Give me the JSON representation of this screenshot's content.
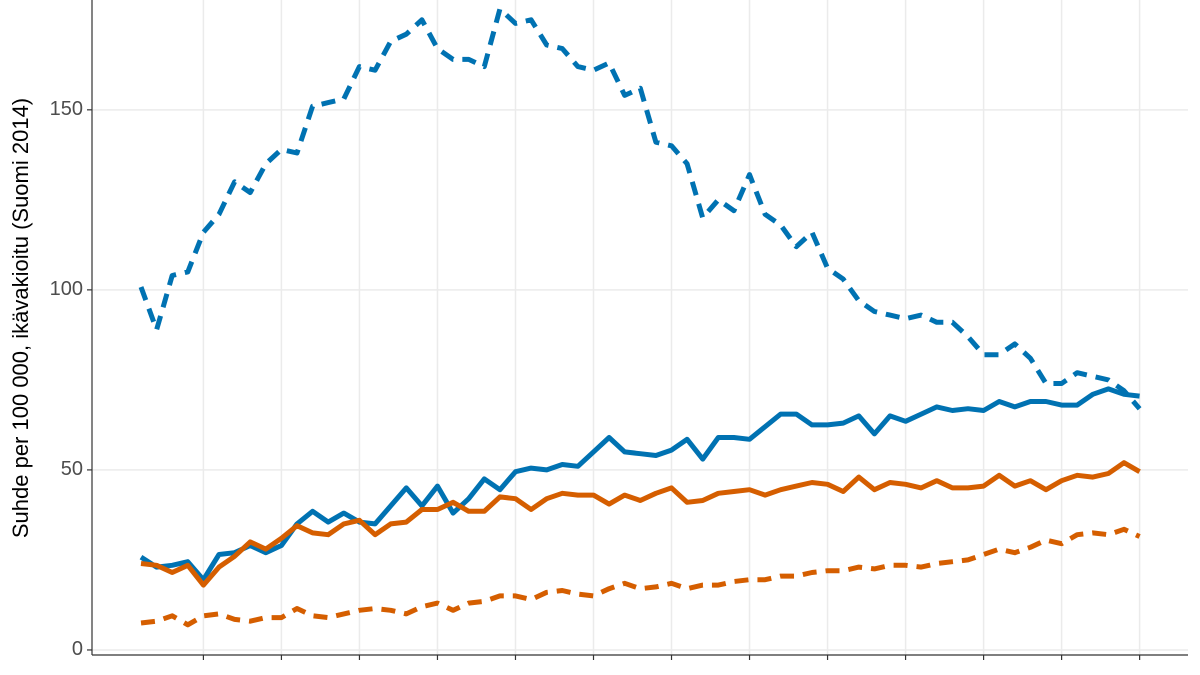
{
  "chart_data": {
    "type": "line",
    "y_label": "Suhde per 100 000, ikävakioitu (Suomi 2014)",
    "x": [
      0,
      1,
      2,
      3,
      4,
      5,
      6,
      7,
      8,
      9,
      10,
      11,
      12,
      13,
      14,
      15,
      16,
      17,
      18,
      19,
      20,
      21,
      22,
      23,
      24,
      25,
      26,
      27,
      28,
      29,
      30,
      31,
      32,
      33,
      34,
      35,
      36,
      37,
      38,
      39,
      40,
      41,
      42,
      43,
      44,
      45,
      46,
      47,
      48,
      49,
      50,
      51,
      52,
      53,
      54,
      55,
      56,
      57,
      58,
      59,
      60,
      61,
      62,
      63,
      64
    ],
    "xlim": [
      -3.14,
      67.1
    ],
    "xticks": [
      4,
      9,
      14,
      19,
      24,
      29,
      34,
      39,
      44,
      49,
      54,
      59,
      64
    ],
    "ylim": [
      -1.4,
      180.5
    ],
    "yticks": [
      0,
      50,
      100,
      150
    ],
    "grid": true,
    "series": [
      {
        "color": "#0072B2",
        "dashed": true,
        "values": [
          100.8,
          88.9,
          104,
          105,
          116,
          121,
          130,
          127,
          135,
          139,
          138,
          151,
          152,
          153,
          162,
          161,
          169,
          171,
          175,
          167,
          164,
          164,
          162,
          178,
          174,
          175,
          168,
          167,
          162,
          161,
          163,
          154,
          156,
          141,
          140,
          135,
          120,
          125,
          122,
          132,
          121,
          118,
          112,
          116,
          106,
          103,
          97,
          94,
          93,
          92,
          93,
          91,
          91,
          87,
          82,
          82,
          85,
          81,
          74,
          74,
          77,
          76,
          75,
          72,
          67
        ]
      },
      {
        "color": "#0072B2",
        "dashed": false,
        "values": [
          25.8,
          23,
          23.5,
          24.5,
          19.5,
          26.5,
          27,
          29,
          27,
          29,
          35,
          38.5,
          35.5,
          38,
          35.5,
          35,
          40,
          45,
          40,
          45.5,
          38,
          42,
          47.5,
          44.5,
          49.5,
          50.5,
          50,
          51.5,
          51,
          55,
          59,
          55,
          54.5,
          54,
          55.5,
          58.5,
          53,
          59,
          59,
          58.5,
          62,
          65.5,
          65.5,
          62.5,
          62.5,
          63,
          65,
          60,
          65,
          63.5,
          65.5,
          67.5,
          66.5,
          67,
          66.5,
          69,
          67.5,
          69,
          69,
          68,
          68,
          71,
          72.5,
          71,
          70.5
        ]
      },
      {
        "color": "#D55E00",
        "dashed": false,
        "values": [
          24,
          23.5,
          21.5,
          23.5,
          18,
          23,
          26,
          30,
          28,
          31,
          34.5,
          32.5,
          32,
          35,
          36,
          32,
          35,
          35.5,
          39,
          39,
          41,
          38.5,
          38.5,
          42.5,
          42,
          39,
          42,
          43.5,
          43,
          43,
          40.5,
          43,
          41.5,
          43.5,
          45,
          41,
          41.5,
          43.5,
          44,
          44.5,
          43,
          44.5,
          45.5,
          46.5,
          46,
          44,
          48,
          44.5,
          46.5,
          46,
          45,
          47,
          45,
          45,
          45.5,
          48.5,
          45.5,
          47,
          44.5,
          47,
          48.5,
          48,
          49,
          52,
          49.5
        ]
      },
      {
        "color": "#D55E00",
        "dashed": true,
        "values": [
          7.5,
          8,
          9.5,
          7,
          9.5,
          10,
          8.5,
          8,
          9,
          9,
          11.5,
          9.5,
          9,
          10,
          11,
          11.5,
          11,
          10,
          12,
          13,
          11,
          13,
          13.5,
          15,
          15,
          14,
          16,
          16.5,
          15.5,
          15,
          17,
          18.5,
          17,
          17.5,
          18.5,
          17,
          18,
          18,
          19,
          19.5,
          19.5,
          20.5,
          20.5,
          21.5,
          22,
          22,
          23,
          22.5,
          23.5,
          23.5,
          23,
          24,
          24.5,
          25,
          26.5,
          28,
          27,
          28.5,
          30.5,
          29.5,
          32,
          32.5,
          32,
          33.5,
          31.5
        ]
      }
    ]
  }
}
